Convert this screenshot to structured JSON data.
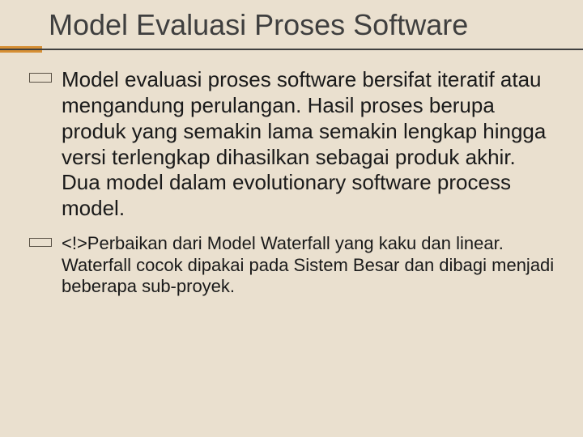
{
  "slide": {
    "title": "Model Evaluasi Proses Software",
    "background_color": "#eae0cf",
    "title_color": "#3f3f3f",
    "title_fontsize": 36,
    "rule_color": "#3f3f3f",
    "accent_color": "#d68f34",
    "bullet_border_color": "#5a5246",
    "items": [
      {
        "text": "Model evaluasi proses software bersifat iteratif atau mengandung perulangan. Hasil proses berupa produk yang semakin lama semakin lengkap hingga versi terlengkap dihasilkan sebagai produk akhir. Dua model dalam evolutionary software process model.",
        "fontsize": 26
      },
      {
        "text": "<!>Perbaikan dari Model Waterfall yang kaku dan linear. Waterfall cocok dipakai pada Sistem Besar dan dibagi menjadi beberapa sub-proyek.",
        "fontsize": 22
      }
    ]
  }
}
